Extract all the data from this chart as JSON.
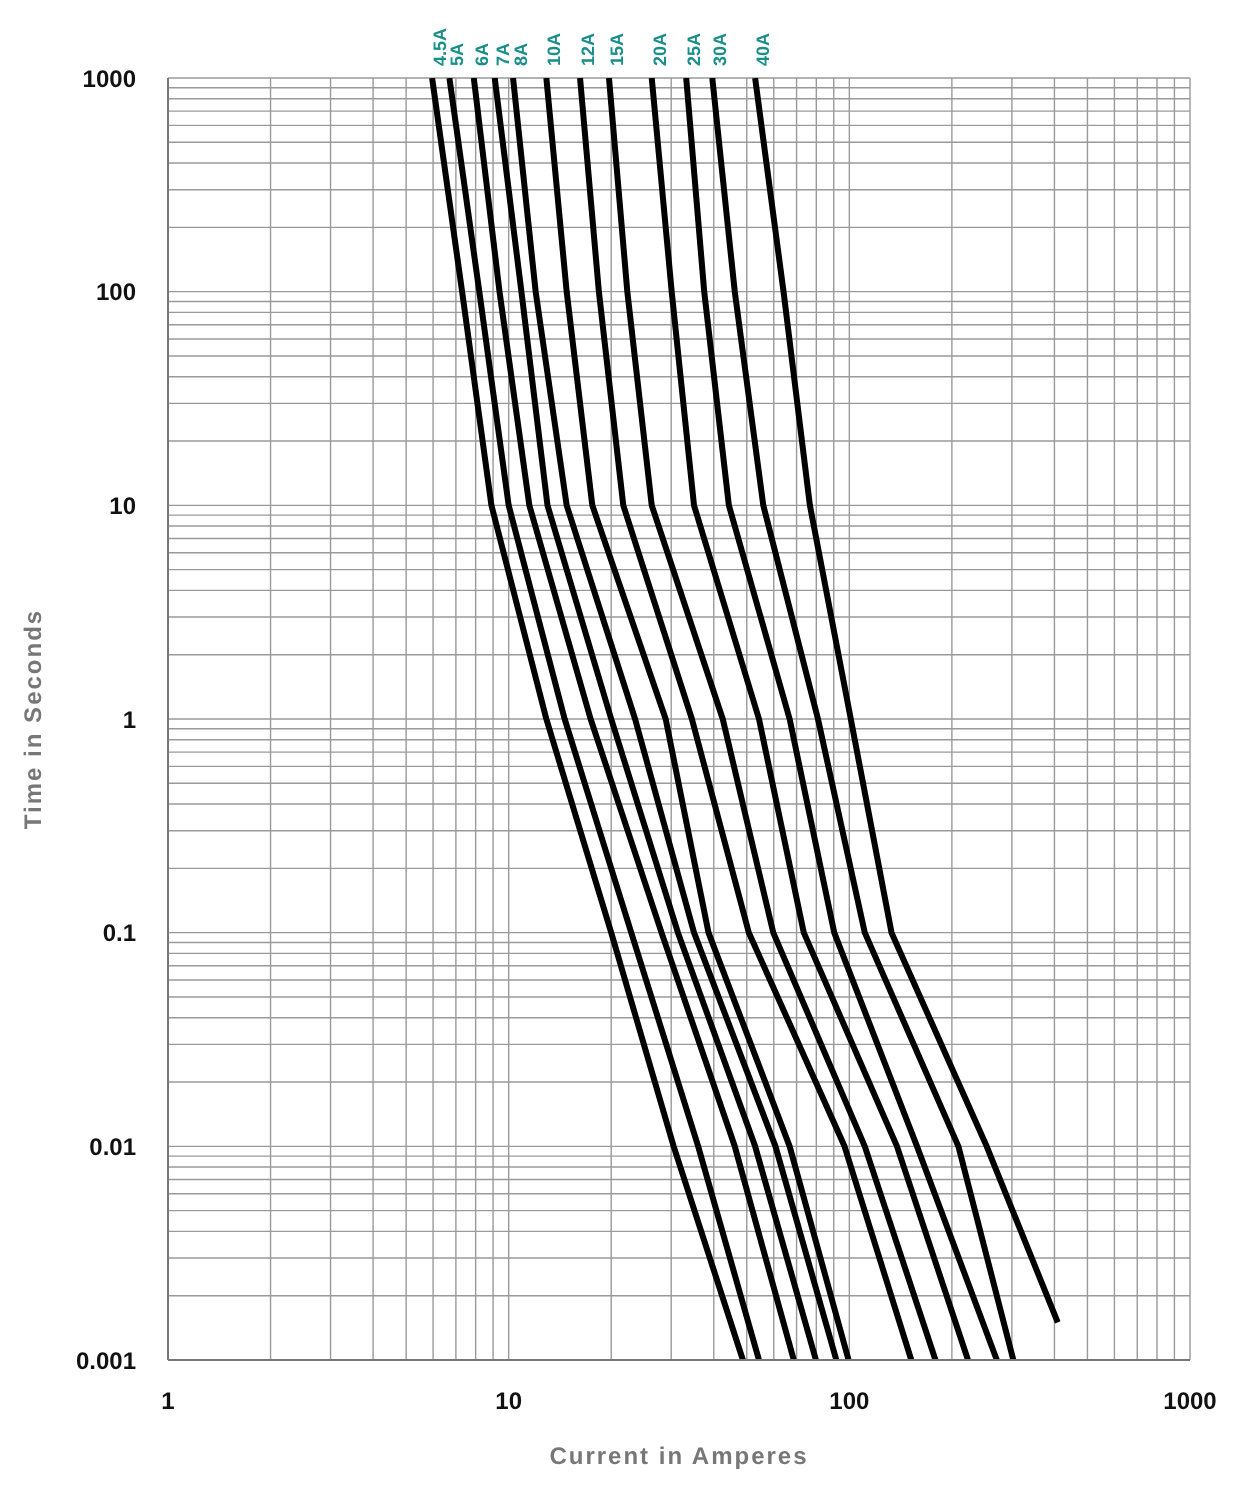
{
  "chart_data": {
    "type": "line",
    "xlabel": "Current in Amperes",
    "ylabel": "Time in Seconds",
    "log": "xy",
    "grid": true,
    "legend": false,
    "xlim": [
      1,
      1000
    ],
    "xticks": [
      1,
      10,
      100,
      1000
    ],
    "ylim": [
      0.001,
      1000
    ],
    "yticks": [
      0.001,
      0.01,
      0.1,
      1,
      10,
      100,
      1000
    ],
    "series": [
      {
        "name": "4.5A",
        "color": "#000000",
        "x": [
          5.96,
          7.3,
          8.9,
          12.9,
          20,
          30.5,
          48.7
        ],
        "values": [
          1000,
          100,
          10,
          1,
          0.1,
          0.01,
          0.001
        ]
      },
      {
        "name": "5A",
        "color": "#000000",
        "x": [
          6.7,
          8.2,
          10,
          14.6,
          22.9,
          36,
          54.3
        ],
        "values": [
          1000,
          100,
          10,
          1,
          0.1,
          0.01,
          0.001
        ]
      },
      {
        "name": "6A",
        "color": "#000000",
        "x": [
          7.9,
          9.4,
          11.5,
          17.4,
          28.1,
          46.1,
          68.7
        ],
        "values": [
          1000,
          100,
          10,
          1,
          0.1,
          0.01,
          0.001
        ]
      },
      {
        "name": "7A",
        "color": "#000000",
        "x": [
          9.1,
          10.9,
          13,
          20,
          31.4,
          52.9,
          79.8
        ],
        "values": [
          1000,
          100,
          10,
          1,
          0.1,
          0.01,
          0.001
        ]
      },
      {
        "name": "8A",
        "color": "#000000",
        "x": [
          10.3,
          12,
          14.8,
          23.5,
          35,
          60.7,
          91.6
        ],
        "values": [
          1000,
          100,
          10,
          1,
          0.1,
          0.01,
          0.001
        ]
      },
      {
        "name": "10A",
        "color": "#000000",
        "x": [
          12.9,
          14.8,
          17.6,
          28.9,
          38.6,
          66.8,
          99.5
        ],
        "values": [
          1000,
          100,
          10,
          1,
          0.1,
          0.01,
          0.001
        ]
      },
      {
        "name": "12A",
        "color": "#000000",
        "x": [
          16.2,
          18.4,
          21.7,
          34.5,
          50.7,
          96.8,
          152
        ],
        "values": [
          1000,
          100,
          10,
          1,
          0.1,
          0.01,
          0.001
        ]
      },
      {
        "name": "15A",
        "color": "#000000",
        "x": [
          19.7,
          22.3,
          26.3,
          42.5,
          59.8,
          111,
          179
        ],
        "values": [
          1000,
          100,
          10,
          1,
          0.1,
          0.01,
          0.001
        ]
      },
      {
        "name": "20A",
        "color": "#000000",
        "x": [
          26.3,
          30.1,
          35,
          54.3,
          73.5,
          138,
          223
        ],
        "values": [
          1000,
          100,
          10,
          1,
          0.1,
          0.01,
          0.001
        ]
      },
      {
        "name": "25A",
        "color": "#000000",
        "x": [
          33.2,
          37.5,
          44.3,
          66.8,
          90.3,
          158,
          271
        ],
        "values": [
          1000,
          100,
          10,
          1,
          0.1,
          0.01,
          0.001
        ]
      },
      {
        "name": "30A",
        "color": "#000000",
        "x": [
          39.6,
          46.1,
          55.9,
          80.9,
          111,
          209,
          303
        ],
        "values": [
          1000,
          100,
          10,
          1,
          0.1,
          0.01,
          0.001
        ]
      },
      {
        "name": "40A",
        "color": "#000000",
        "x": [
          52.9,
          64.1,
          76.6,
          101,
          133,
          253,
          409
        ],
        "values": [
          1000,
          100,
          10,
          1,
          0.1,
          0.01,
          0.0015
        ]
      }
    ]
  }
}
